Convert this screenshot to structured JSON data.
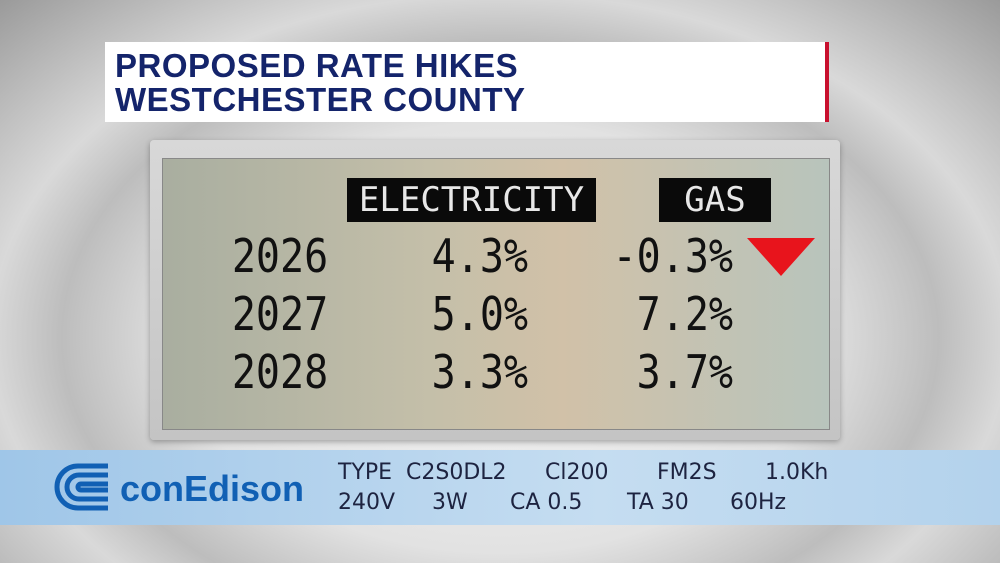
{
  "header": {
    "title_lines": [
      "PROPOSED RATE HIKES",
      "WESTCHESTER COUNTY"
    ]
  },
  "table": {
    "columns": [
      "ELECTRICITY",
      "GAS"
    ],
    "rows": [
      [
        "2026",
        "4.3%",
        "-0.3%"
      ],
      [
        "2027",
        "5.0%",
        "7.2%"
      ],
      [
        "2028",
        "3.3%",
        "3.7%"
      ]
    ]
  },
  "meter": {
    "brand": "conEdison",
    "specs": [
      [
        "TYPE",
        "C2S0DL2",
        "Cl200",
        "FM2S",
        "1.0Kh"
      ],
      [
        "240V",
        "3W",
        "CA 0.5",
        "TA 30",
        "60Hz"
      ]
    ]
  }
}
